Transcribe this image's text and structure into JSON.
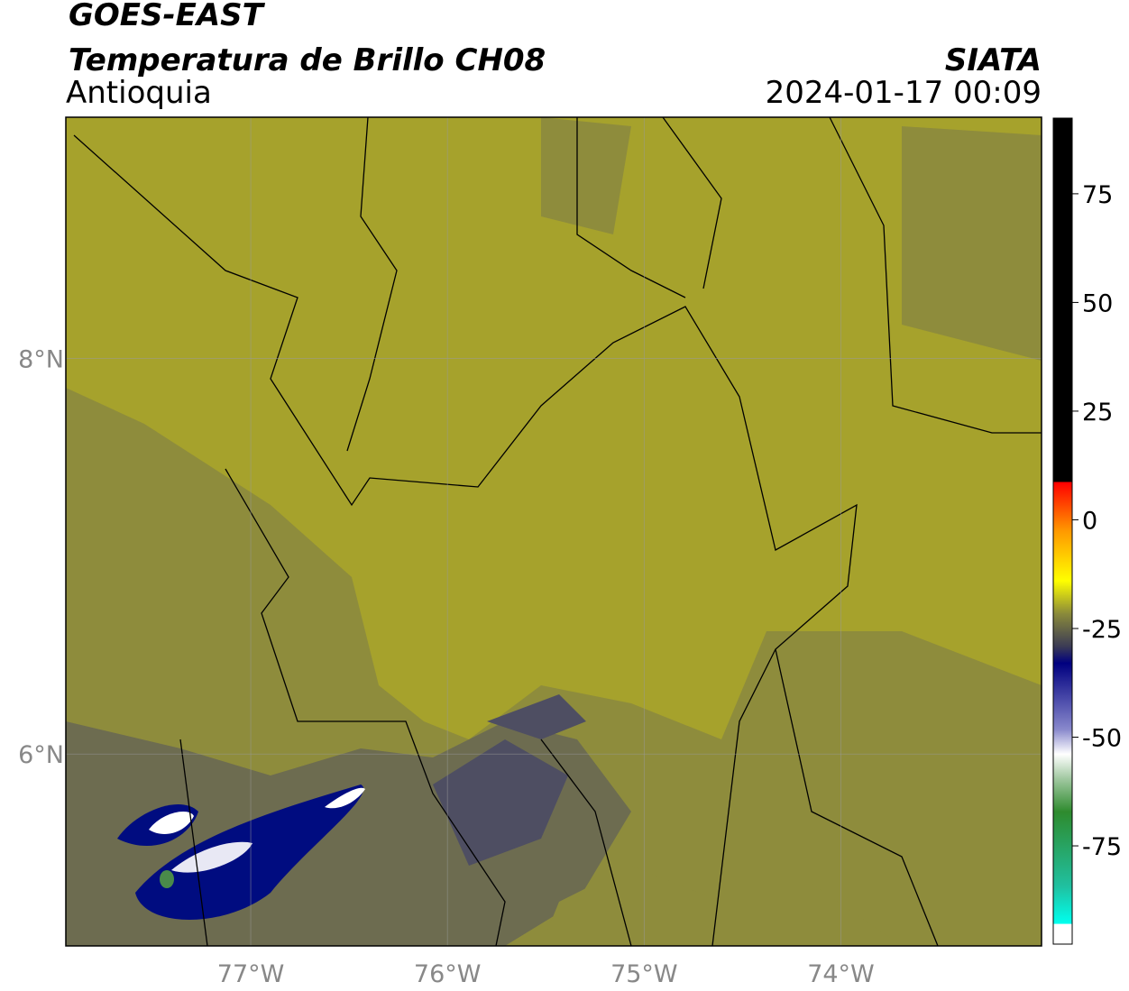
{
  "header": {
    "title": "GOES-EAST",
    "subtitle": "Temperatura de Brillo CH08",
    "region": "Antioquia",
    "source": "SIATA",
    "datetime": "2024-01-17 00:09"
  },
  "map": {
    "xlim": [
      -77.94,
      -72.98
    ],
    "ylim": [
      5.03,
      9.22
    ],
    "xticks": [
      {
        "value": -77,
        "label": "77°W"
      },
      {
        "value": -76,
        "label": "76°W"
      },
      {
        "value": -75,
        "label": "75°W"
      },
      {
        "value": -74,
        "label": "74°W"
      }
    ],
    "yticks": [
      {
        "value": 8,
        "label": "8°N"
      },
      {
        "value": 6,
        "label": "6°N"
      }
    ]
  },
  "colorbar": {
    "lim": [
      -97.6,
      92.4
    ],
    "ticks": [
      75,
      50,
      25,
      0,
      -25,
      -50,
      -75
    ]
  }
}
